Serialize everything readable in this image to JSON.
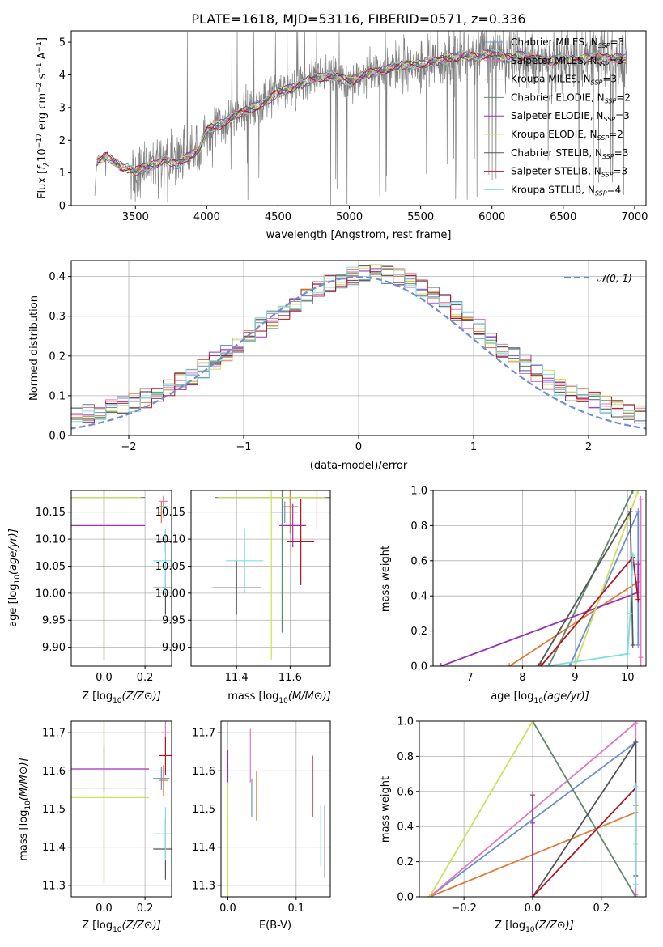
{
  "figure_title": "PLATE=1618, MJD=53116, FIBERID=0571, z=0.336",
  "colors": {
    "Chabrier MILES": "#6a8fd4",
    "Salpeter MILES": "#e377c2",
    "Kroupa MILES": "#e07b39",
    "Chabrier ELODIE": "#5f8a6a",
    "Salpeter ELODIE": "#9b30b8",
    "Kroupa ELODIE": "#cfe05a",
    "Chabrier STELIB": "#555555",
    "Salpeter STELIB": "#b4141e",
    "Kroupa STELIB": "#7fdde6",
    "data": "#808080",
    "normal": "#6a8fd4"
  },
  "models": [
    {
      "imf": "Chabrier",
      "lib": "MILES",
      "nssp": "3"
    },
    {
      "imf": "Salpeter",
      "lib": "MILES",
      "nssp": "3"
    },
    {
      "imf": "Kroupa",
      "lib": "MILES",
      "nssp": "3"
    },
    {
      "imf": "Chabrier",
      "lib": "ELODIE",
      "nssp": "2"
    },
    {
      "imf": "Salpeter",
      "lib": "ELODIE",
      "nssp": "3"
    },
    {
      "imf": "Kroupa",
      "lib": "ELODIE",
      "nssp": "2"
    },
    {
      "imf": "Chabrier",
      "lib": "STELIB",
      "nssp": "3"
    },
    {
      "imf": "Salpeter",
      "lib": "STELIB",
      "nssp": "3"
    },
    {
      "imf": "Kroupa",
      "lib": "STELIB",
      "nssp": "4"
    }
  ],
  "chart_data": [
    {
      "id": "spectrum",
      "type": "line",
      "xlabel": "wavelength [Angstrom, rest frame]",
      "ylabel": "Flux [f_λ 10^-17 erg cm^-2 s^-1 A^-1]",
      "xlim": [
        3050,
        7080
      ],
      "ylim": [
        0,
        5.35
      ],
      "xticks": [
        3500,
        4000,
        4500,
        5000,
        5500,
        6000,
        6500,
        7000
      ],
      "yticks": [
        0,
        1,
        2,
        3,
        4,
        5
      ],
      "grid": false,
      "legend": "upper right",
      "continuum": {
        "x": [
          3210,
          3230,
          3300,
          3400,
          3500,
          3600,
          3700,
          3800,
          3900,
          3950,
          4000,
          4100,
          4200,
          4300,
          4400,
          4500,
          4600,
          4700,
          4800,
          4900,
          5000,
          5100,
          5200,
          5300,
          5400,
          5500,
          5600,
          5700,
          5800,
          5900,
          6000,
          6100,
          6200,
          6300,
          6400,
          6500,
          6600,
          6700,
          6800,
          6900
        ],
        "y": [
          0.0,
          1.35,
          1.5,
          1.2,
          1.05,
          1.2,
          1.4,
          1.25,
          1.6,
          1.7,
          2.3,
          2.5,
          2.75,
          2.95,
          3.15,
          3.45,
          3.6,
          3.8,
          3.95,
          3.95,
          3.8,
          4.0,
          4.1,
          4.25,
          4.3,
          4.35,
          4.4,
          4.5,
          4.6,
          4.55,
          4.7,
          4.5,
          4.6,
          4.5,
          4.4,
          4.5,
          4.45,
          4.55,
          4.5,
          4.5
        ]
      }
    },
    {
      "id": "residuals",
      "type": "line",
      "xlabel": "(data-model)/error",
      "ylabel": "Normed distribution",
      "xlim": [
        -2.5,
        2.5
      ],
      "ylim": [
        0,
        0.44
      ],
      "xticks": [
        -2,
        -1,
        0,
        1,
        2
      ],
      "yticks": [
        0.0,
        0.1,
        0.2,
        0.3,
        0.4
      ],
      "grid": true,
      "legend": "upper right",
      "reference_label": "𝒩(0, 1)"
    },
    {
      "id": "age-vs-Z",
      "type": "scatter",
      "xlabel": "Z [log10(Z/Z⊙)]",
      "ylabel": "age  [log10(age/yr)]",
      "xlim": [
        -0.16,
        0.33
      ],
      "ylim": [
        9.865,
        10.19
      ],
      "xticks": [
        0.0,
        0.2
      ],
      "yticks": [
        9.9,
        9.95,
        10.0,
        10.05,
        10.1,
        10.15
      ],
      "grid": true,
      "points": [
        {
          "x": 0.29,
          "y": 10.16,
          "xerr": 0.02,
          "yerr": 0.02
        },
        {
          "x": 0.29,
          "y": 10.17,
          "xerr": 0.02,
          "yerr": 0.01
        },
        {
          "x": 0.28,
          "y": 10.15,
          "xerr": 0.02,
          "yerr": 0.02
        },
        {
          "x": 0.0,
          "y": 10.177,
          "xerr": 0.2,
          "yerr": 0.3
        },
        {
          "x": 0.0,
          "y": 10.125,
          "xerr": 0.2,
          "yerr": 0.25
        },
        {
          "x": 0.0,
          "y": 10.177,
          "xerr": 0.18,
          "yerr": 0.3
        },
        {
          "x": 0.3,
          "y": 10.01,
          "xerr": 0.06,
          "yerr": 0.05
        },
        {
          "x": 0.3,
          "y": 10.095,
          "xerr": 0.04,
          "yerr": 0.02
        },
        {
          "x": 0.3,
          "y": 10.06,
          "xerr": 0.06,
          "yerr": 0.06
        }
      ]
    },
    {
      "id": "age-vs-mass",
      "type": "scatter",
      "xlabel": "mass [log10(M/M⊙)]",
      "ylabel": "",
      "xlim": [
        11.23,
        11.75
      ],
      "ylim": [
        9.865,
        10.19
      ],
      "xticks": [
        11.4,
        11.6
      ],
      "yticks": [
        9.9,
        9.95,
        10.0,
        10.05,
        10.1,
        10.15
      ],
      "grid": true,
      "points": [
        {
          "x": 11.58,
          "y": 10.15,
          "xerr": 0.05,
          "yerr": 0.02
        },
        {
          "x": 11.7,
          "y": 10.177,
          "xerr": 0.05,
          "yerr": 0.06
        },
        {
          "x": 11.6,
          "y": 10.16,
          "xerr": 0.03,
          "yerr": 0.05
        },
        {
          "x": 11.57,
          "y": 10.177,
          "xerr": 0.25,
          "yerr": 0.25
        },
        {
          "x": 11.61,
          "y": 10.125,
          "xerr": 0.05,
          "yerr": 0.04
        },
        {
          "x": 11.53,
          "y": 10.177,
          "xerr": 0.2,
          "yerr": 0.3
        },
        {
          "x": 11.4,
          "y": 10.01,
          "xerr": 0.09,
          "yerr": 0.05
        },
        {
          "x": 11.64,
          "y": 10.095,
          "xerr": 0.05,
          "yerr": 0.08
        },
        {
          "x": 11.43,
          "y": 10.06,
          "xerr": 0.07,
          "yerr": 0.06
        }
      ]
    },
    {
      "id": "massweight-vs-age",
      "type": "line",
      "xlabel": "age  [log10(age/yr)]",
      "ylabel": "mass weight",
      "xlim": [
        6.3,
        10.35
      ],
      "ylim": [
        0,
        1
      ],
      "xticks": [
        7,
        8,
        9,
        10
      ],
      "yticks": [
        0.0,
        0.2,
        0.4,
        0.6,
        0.8,
        1.0
      ],
      "grid": true,
      "series": [
        {
          "x": [
            8.9,
            10.2,
            10.2
          ],
          "y": [
            0.0,
            0.88,
            0.12
          ]
        },
        {
          "x": [
            10.25,
            10.25,
            10.25
          ],
          "y": [
            0.0,
            0.95,
            0.05
          ]
        },
        {
          "x": [
            7.75,
            10.2,
            10.2
          ],
          "y": [
            0.0,
            0.48,
            0.52
          ]
        },
        {
          "x": [
            8.5,
            10.1
          ],
          "y": [
            0.0,
            1.0
          ]
        },
        {
          "x": [
            6.45,
            10.2,
            10.2
          ],
          "y": [
            0.0,
            0.42,
            0.58
          ]
        },
        {
          "x": [
            9.0,
            10.2
          ],
          "y": [
            0.0,
            1.0
          ]
        },
        {
          "x": [
            8.3,
            10.05,
            10.1
          ],
          "y": [
            0.0,
            0.88,
            0.12
          ]
        },
        {
          "x": [
            8.35,
            10.1,
            10.2
          ],
          "y": [
            0.0,
            0.62,
            0.38
          ]
        },
        {
          "x": [
            8.45,
            10.0,
            10.05,
            10.1
          ],
          "y": [
            0.0,
            0.07,
            0.3,
            0.63
          ]
        }
      ]
    },
    {
      "id": "mass-vs-Z",
      "type": "scatter",
      "xlabel": "Z [log10(Z/Z⊙)]",
      "ylabel": "mass [log10(M/M⊙)]",
      "xlim": [
        -0.16,
        0.33
      ],
      "ylim": [
        11.27,
        11.73
      ],
      "xticks": [
        0.0,
        0.2
      ],
      "yticks": [
        11.3,
        11.4,
        11.5,
        11.6,
        11.7
      ],
      "grid": true,
      "points": [
        {
          "x": 0.28,
          "y": 11.58,
          "xerr": 0.04,
          "yerr": 0.03
        },
        {
          "x": 0.3,
          "y": 11.7,
          "xerr": 0.02,
          "yerr": 0.05
        },
        {
          "x": 0.29,
          "y": 11.575,
          "xerr": 0.02,
          "yerr": 0.04
        },
        {
          "x": 0.0,
          "y": 11.555,
          "xerr": 0.22,
          "yerr": 0.25
        },
        {
          "x": 0.0,
          "y": 11.605,
          "xerr": 0.22,
          "yerr": 0.06
        },
        {
          "x": 0.0,
          "y": 11.53,
          "xerr": 0.22,
          "yerr": 0.23
        },
        {
          "x": 0.3,
          "y": 11.395,
          "xerr": 0.06,
          "yerr": 0.08
        },
        {
          "x": 0.3,
          "y": 11.64,
          "xerr": 0.03,
          "yerr": 0.05
        },
        {
          "x": 0.3,
          "y": 11.435,
          "xerr": 0.06,
          "yerr": 0.07
        }
      ]
    },
    {
      "id": "mass-vs-EBV",
      "type": "scatter",
      "xlabel": "E(B-V)",
      "ylabel": "",
      "xlim": [
        -0.01,
        0.15
      ],
      "ylim": [
        11.27,
        11.73
      ],
      "xticks": [
        0.0,
        0.1
      ],
      "yticks": [
        11.3,
        11.4,
        11.5,
        11.6,
        11.7
      ],
      "grid": true,
      "points": [
        {
          "x": 0.035,
          "y": 11.53,
          "yerr": 0.05
        },
        {
          "x": 0.033,
          "y": 11.64,
          "yerr": 0.07
        },
        {
          "x": 0.042,
          "y": 11.535,
          "yerr": 0.065
        },
        {
          "x": 0.0,
          "y": 11.585,
          "yerr": 0.03
        },
        {
          "x": 0.0,
          "y": 11.61,
          "yerr": 0.045
        },
        {
          "x": 0.0,
          "y": 11.42,
          "yerr": 0.15
        },
        {
          "x": 0.142,
          "y": 11.415,
          "yerr": 0.095
        },
        {
          "x": 0.124,
          "y": 11.56,
          "yerr": 0.08
        },
        {
          "x": 0.136,
          "y": 11.43,
          "yerr": 0.08
        }
      ]
    },
    {
      "id": "massweight-vs-Z",
      "type": "line",
      "xlabel": "Z [log10(Z/Z⊙)]",
      "ylabel": "mass weight",
      "xlim": [
        -0.33,
        0.33
      ],
      "ylim": [
        0,
        1
      ],
      "xticks": [
        -0.2,
        0.0,
        0.2
      ],
      "yticks": [
        0.0,
        0.2,
        0.4,
        0.6,
        0.8,
        1.0
      ],
      "grid": true,
      "series": [
        {
          "x": [
            -0.3,
            0.3,
            0.3
          ],
          "y": [
            0.0,
            0.88,
            0.12
          ]
        },
        {
          "x": [
            -0.3,
            0.3,
            0.3
          ],
          "y": [
            0.0,
            0.99,
            0.01
          ]
        },
        {
          "x": [
            -0.3,
            0.3,
            0.3
          ],
          "y": [
            0.0,
            0.48,
            0.52
          ]
        },
        {
          "x": [
            0.0,
            0.3
          ],
          "y": [
            1.0,
            0.0
          ]
        },
        {
          "x": [
            0.0,
            0.0,
            0.0
          ],
          "y": [
            0.0,
            0.42,
            0.58
          ]
        },
        {
          "x": [
            -0.3,
            0.0
          ],
          "y": [
            0.0,
            1.0
          ]
        },
        {
          "x": [
            0.0,
            0.3,
            0.3
          ],
          "y": [
            0.0,
            0.88,
            0.12
          ]
        },
        {
          "x": [
            0.0,
            0.3,
            0.3
          ],
          "y": [
            0.0,
            0.62,
            0.38
          ]
        },
        {
          "x": [
            0.3,
            0.3,
            0.3
          ],
          "y": [
            0.07,
            0.3,
            0.63
          ]
        }
      ]
    }
  ]
}
